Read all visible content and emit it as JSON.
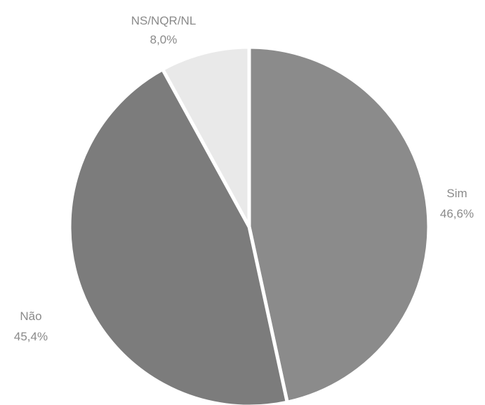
{
  "chart_data": {
    "type": "pie",
    "slices": [
      {
        "label": "Sim",
        "value": 46.6,
        "display": "46,6%",
        "color": "#8b8b8b"
      },
      {
        "label": "Não",
        "value": 45.4,
        "display": "45,4%",
        "color": "#7c7c7c"
      },
      {
        "label": "NS/NQR/NL",
        "value": 8.0,
        "display": "8,0%",
        "color": "#e9e9e9"
      }
    ],
    "start": "12 o'clock",
    "direction": "clockwise",
    "legend": "none",
    "data_labels": "outside"
  }
}
